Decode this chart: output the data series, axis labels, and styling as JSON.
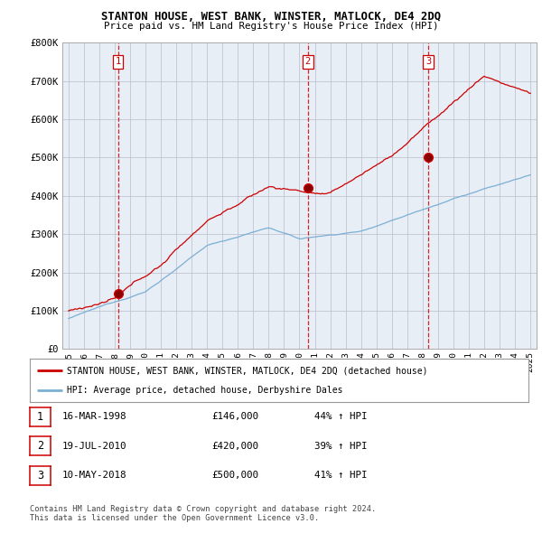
{
  "title": "STANTON HOUSE, WEST BANK, WINSTER, MATLOCK, DE4 2DQ",
  "subtitle": "Price paid vs. HM Land Registry's House Price Index (HPI)",
  "ylim": [
    0,
    800000
  ],
  "yticks": [
    0,
    100000,
    200000,
    300000,
    400000,
    500000,
    600000,
    700000,
    800000
  ],
  "ytick_labels": [
    "£0",
    "£100K",
    "£200K",
    "£300K",
    "£400K",
    "£500K",
    "£600K",
    "£700K",
    "£800K"
  ],
  "sale_color": "#cc0000",
  "hpi_color": "#7bafd4",
  "vline_color": "#cc0000",
  "grid_color": "#bbbbcc",
  "chart_bg": "#e8eef6",
  "background_color": "#ffffff",
  "sales": [
    {
      "year": 1998.21,
      "price": 146000,
      "label": "1"
    },
    {
      "year": 2010.55,
      "price": 420000,
      "label": "2"
    },
    {
      "year": 2018.36,
      "price": 500000,
      "label": "3"
    }
  ],
  "legend_sale_label": "STANTON HOUSE, WEST BANK, WINSTER, MATLOCK, DE4 2DQ (detached house)",
  "legend_hpi_label": "HPI: Average price, detached house, Derbyshire Dales",
  "table_rows": [
    {
      "num": "1",
      "date": "16-MAR-1998",
      "price": "£146,000",
      "change": "44% ↑ HPI"
    },
    {
      "num": "2",
      "date": "19-JUL-2010",
      "price": "£420,000",
      "change": "39% ↑ HPI"
    },
    {
      "num": "3",
      "date": "10-MAY-2018",
      "price": "£500,000",
      "change": "41% ↑ HPI"
    }
  ],
  "footer1": "Contains HM Land Registry data © Crown copyright and database right 2024.",
  "footer2": "This data is licensed under the Open Government Licence v3.0."
}
